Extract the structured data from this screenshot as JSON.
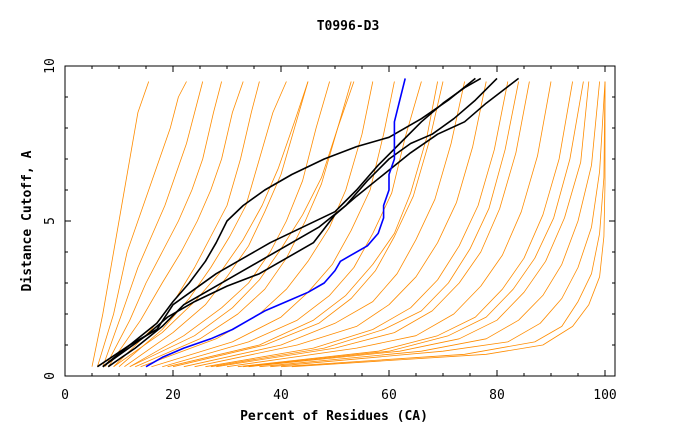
{
  "chart_data": {
    "type": "line",
    "title": "T0996-D3",
    "xlabel": "Percent of Residues (CA)",
    "ylabel": "Distance Cutoff, A",
    "xlim": [
      0,
      100
    ],
    "ylim": [
      0,
      10
    ],
    "x_ticks": [
      "0",
      "20",
      "40",
      "60",
      "80",
      "100"
    ],
    "y_ticks": [
      "0",
      "5",
      "10"
    ],
    "grid": false,
    "colors": {
      "other_models": "#ff8c00",
      "highlighted_models": "#000000",
      "best_model": "#0000ff"
    },
    "series_groups": [
      {
        "group": "other_models",
        "color": "#ff8c00",
        "series": [
          {
            "x": [
              5,
              7,
              9,
              10.5,
              11.5,
              12.5,
              13.5,
              14.5,
              15.5
            ],
            "y": [
              0.3,
              2,
              4,
              5.5,
              6.5,
              7.5,
              8.5,
              9,
              9.5
            ]
          },
          {
            "x": [
              6,
              9,
              11.5,
              13.5,
              15.5,
              17.5,
              19.5,
              21,
              22.5
            ],
            "y": [
              0.3,
              2,
              4,
              5,
              6,
              7,
              8,
              9,
              9.5
            ]
          },
          {
            "x": [
              7,
              10.5,
              13.5,
              16,
              18.5,
              20.5,
              22.5,
              24,
              25.5
            ],
            "y": [
              0.3,
              2,
              3.5,
              4.5,
              5.5,
              6.5,
              7.5,
              8.5,
              9.5
            ]
          },
          {
            "x": [
              7.5,
              12,
              15,
              18,
              21,
              23.5,
              25.5,
              27.5,
              29
            ],
            "y": [
              0.3,
              1.8,
              3,
              4,
              5,
              6,
              7,
              8.5,
              9.5
            ]
          },
          {
            "x": [
              8,
              14,
              18,
              21.5,
              24.5,
              27,
              29,
              31,
              33
            ],
            "y": [
              0.3,
              1.8,
              3,
              4,
              5,
              6,
              7,
              8.5,
              9.5
            ]
          },
          {
            "x": [
              9,
              16,
              20.5,
              24,
              27,
              30,
              32.5,
              34.5,
              36
            ],
            "y": [
              0.3,
              1.5,
              2.5,
              3.5,
              4.5,
              5.5,
              7,
              8.5,
              9.5
            ]
          },
          {
            "x": [
              10,
              18,
              23,
              27,
              30.5,
              33.5,
              36,
              38.5,
              41
            ],
            "y": [
              0.3,
              1.5,
              2.5,
              3.5,
              4.5,
              5.5,
              7,
              8.5,
              9.5
            ]
          },
          {
            "x": [
              11,
              20,
              26,
              30,
              34,
              37,
              40,
              42.5,
              45
            ],
            "y": [
              0.3,
              1.4,
              2.3,
              3.2,
              4.2,
              5.3,
              6.5,
              8,
              9.5
            ]
          },
          {
            "x": [
              12,
              22,
              29,
              34,
              38,
              41,
              44,
              46.5,
              49
            ],
            "y": [
              0.3,
              1.3,
              2.2,
              3,
              4,
              5,
              6.3,
              8,
              9.5
            ]
          },
          {
            "x": [
              13,
              25,
              32,
              37,
              41,
              44.5,
              47.5,
              50.5,
              53
            ],
            "y": [
              0.3,
              1.2,
              2,
              2.8,
              3.8,
              5,
              6.2,
              8,
              9.5
            ]
          },
          {
            "x": [
              14,
              28,
              36,
              41,
              45,
              49,
              52,
              55,
              57
            ],
            "y": [
              0.3,
              1.2,
              2,
              2.8,
              3.7,
              4.8,
              6,
              7.8,
              9.5
            ]
          },
          {
            "x": [
              16,
              31,
              40,
              45,
              49.5,
              53,
              56.5,
              59,
              61
            ],
            "y": [
              0.3,
              1.1,
              1.9,
              2.7,
              3.6,
              4.7,
              6,
              7.8,
              9.5
            ]
          },
          {
            "x": [
              18,
              34,
              43,
              49,
              53.5,
              57,
              60.5,
              63,
              66
            ],
            "y": [
              0.3,
              1.1,
              1.8,
              2.6,
              3.5,
              4.6,
              5.9,
              7.7,
              9.5
            ]
          },
          {
            "x": [
              20,
              37,
              47,
              53,
              57.5,
              61,
              64.5,
              67.5,
              70
            ],
            "y": [
              0.3,
              1,
              1.7,
              2.5,
              3.4,
              4.5,
              5.8,
              7.6,
              9.5
            ]
          },
          {
            "x": [
              22,
              40,
              50,
              57,
              61.5,
              65,
              68.5,
              71.5,
              74
            ],
            "y": [
              0.3,
              1,
              1.7,
              2.4,
              3.3,
              4.4,
              5.7,
              7.5,
              9.5
            ]
          },
          {
            "x": [
              24,
              43,
              54,
              60,
              65,
              69,
              72.5,
              75.5,
              78
            ],
            "y": [
              0.3,
              1,
              1.6,
              2.3,
              3.2,
              4.3,
              5.6,
              7.4,
              9.5
            ]
          },
          {
            "x": [
              26,
              46,
              57,
              64,
              69,
              73,
              76.5,
              79.5,
              82
            ],
            "y": [
              0.3,
              0.9,
              1.5,
              2.2,
              3.1,
              4.2,
              5.5,
              7.3,
              9.5
            ]
          },
          {
            "x": [
              28,
              50,
              61,
              68,
              73,
              77,
              80.5,
              83.5,
              86
            ],
            "y": [
              0.3,
              0.9,
              1.4,
              2.1,
              3,
              4,
              5.4,
              7.2,
              9.5
            ]
          },
          {
            "x": [
              30,
              54,
              65,
              72,
              77,
              81,
              84.5,
              87.5,
              90
            ],
            "y": [
              0.3,
              0.9,
              1.3,
              2,
              2.9,
              3.9,
              5.3,
              7.1,
              9.5
            ]
          },
          {
            "x": [
              32,
              58,
              69,
              76,
              81,
              85,
              88.5,
              91.5,
              94
            ],
            "y": [
              0.3,
              0.8,
              1.3,
              1.9,
              2.8,
              3.8,
              5.2,
              7,
              9.5
            ]
          },
          {
            "x": [
              34,
              62,
              73,
              80,
              85,
              89,
              92.5,
              95.5,
              97
            ],
            "y": [
              0.3,
              0.8,
              1.2,
              1.8,
              2.7,
              3.7,
              5.1,
              6.9,
              9.5
            ]
          },
          {
            "x": [
              36,
              66,
              78,
              84,
              88.5,
              92,
              95,
              97.5,
              99
            ],
            "y": [
              0.3,
              0.8,
              1.2,
              1.8,
              2.6,
              3.6,
              5,
              6.8,
              9.5
            ]
          },
          {
            "x": [
              38,
              70,
              82,
              88,
              92,
              95,
              97.5,
              99,
              100
            ],
            "y": [
              0.3,
              0.8,
              1.1,
              1.7,
              2.5,
              3.5,
              4.8,
              6.6,
              9.5
            ]
          },
          {
            "x": [
              40,
              74,
              87,
              92,
              95,
              97.5,
              99,
              99.8,
              100
            ],
            "y": [
              0.3,
              0.7,
              1.1,
              1.6,
              2.4,
              3.3,
              4.6,
              6.4,
              9.5
            ]
          },
          {
            "x": [
              42,
              78,
              88.5,
              94,
              97,
              99,
              99.8,
              100,
              100
            ],
            "y": [
              0.3,
              0.7,
              1,
              1.6,
              2.3,
              3.2,
              4.5,
              6.2,
              9.5
            ]
          },
          {
            "x": [
              12,
              24,
              31,
              36,
              40,
              44,
              47.5,
              50.5,
              53.5
            ],
            "y": [
              0.3,
              1.3,
              2.2,
              3.1,
              4.1,
              5.2,
              6.4,
              8,
              9.5
            ]
          },
          {
            "x": [
              9,
              18,
              24,
              29,
              33,
              36.5,
              39.5,
              42.5,
              45
            ],
            "y": [
              0.3,
              1.4,
              2.4,
              3.4,
              4.4,
              5.5,
              6.7,
              8.2,
              9.5
            ]
          },
          {
            "x": [
              19,
              36,
              46,
              52,
              57,
              61,
              64,
              67,
              69
            ],
            "y": [
              0.3,
              1,
              1.8,
              2.6,
              3.6,
              4.6,
              5.9,
              7.7,
              9.5
            ]
          },
          {
            "x": [
              27,
              48,
              59,
              66,
              71,
              75,
              78.5,
              81.5,
              84
            ],
            "y": [
              0.3,
              0.9,
              1.5,
              2.1,
              3,
              4.1,
              5.4,
              7.3,
              9.5
            ]
          },
          {
            "x": [
              33,
              60,
              71,
              78,
              83,
              87,
              90.5,
              93.5,
              96
            ],
            "y": [
              0.3,
              0.8,
              1.3,
              1.9,
              2.8,
              3.8,
              5.1,
              7,
              9.5
            ]
          }
        ]
      },
      {
        "group": "highlighted_models",
        "color": "#000000",
        "series": [
          {
            "x": [
              6,
              12,
              17,
              20,
              23,
              26,
              28,
              30,
              33,
              37,
              42,
              48,
              54,
              60,
              66,
              71,
              76
            ],
            "y": [
              0.3,
              1,
              1.7,
              2.4,
              3,
              3.7,
              4.3,
              5,
              5.5,
              6,
              6.5,
              7,
              7.4,
              7.7,
              8.3,
              8.9,
              9.6
            ]
          },
          {
            "x": [
              7,
              12,
              17,
              20,
              24,
              28,
              33,
              38,
              44,
              50,
              54,
              58,
              62,
              66,
              70,
              74,
              77
            ],
            "y": [
              0.3,
              1,
              1.5,
              2.3,
              2.8,
              3.3,
              3.8,
              4.3,
              4.8,
              5.3,
              6,
              6.8,
              7.5,
              8.2,
              8.8,
              9.3,
              9.6
            ]
          },
          {
            "x": [
              8,
              13,
              18,
              22,
              27,
              32,
              37,
              42,
              47,
              52,
              56,
              60,
              64,
              68,
              72,
              76,
              80
            ],
            "y": [
              0.3,
              0.9,
              1.6,
              2.3,
              2.8,
              3.3,
              3.8,
              4.3,
              4.8,
              5.5,
              6.3,
              7,
              7.5,
              7.8,
              8.3,
              8.9,
              9.6
            ]
          },
          {
            "x": [
              7,
              11,
              15,
              19,
              24,
              30,
              36,
              41,
              46,
              50,
              54,
              59,
              64,
              69,
              74,
              78,
              84
            ],
            "y": [
              0.3,
              0.8,
              1.3,
              1.9,
              2.4,
              2.9,
              3.3,
              3.8,
              4.3,
              5.2,
              5.8,
              6.5,
              7.2,
              7.8,
              8.2,
              8.8,
              9.6
            ]
          }
        ]
      },
      {
        "group": "best_model",
        "color": "#0000ff",
        "series": [
          {
            "x": [
              15,
              18,
              22,
              27,
              31,
              34,
              37,
              41,
              45,
              48,
              50,
              51,
              53,
              56,
              58,
              59,
              59,
              60,
              60,
              61,
              61,
              61,
              62,
              63
            ],
            "y": [
              0.3,
              0.6,
              0.9,
              1.2,
              1.5,
              1.8,
              2.1,
              2.4,
              2.7,
              3.0,
              3.4,
              3.7,
              3.9,
              4.2,
              4.6,
              5.1,
              5.5,
              6.0,
              6.5,
              7.0,
              7.5,
              8.2,
              8.9,
              9.6
            ]
          }
        ]
      }
    ]
  }
}
